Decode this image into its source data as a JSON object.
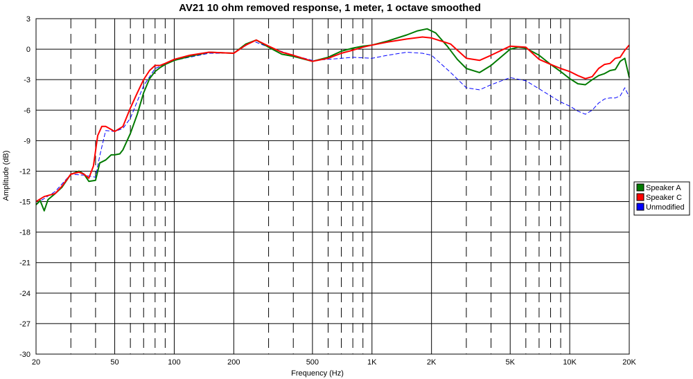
{
  "chart_data": {
    "type": "line",
    "title": "AV21 10 ohm removed response, 1 meter, 1 octave smoothed",
    "xlabel": "Frequency (Hz)",
    "ylabel": "Amplitude (dB)",
    "x_scale": "log",
    "xlim": [
      20,
      20000
    ],
    "ylim": [
      -30,
      3
    ],
    "x_tick_values": [
      20,
      50,
      100,
      200,
      500,
      1000,
      2000,
      5000,
      10000,
      20000
    ],
    "x_tick_labels": [
      "20",
      "50",
      "100",
      "200",
      "500",
      "1K",
      "2K",
      "5K",
      "10K",
      "20K"
    ],
    "y_ticks": [
      3,
      0,
      -3,
      -6,
      -9,
      -12,
      -15,
      -18,
      -21,
      -24,
      -27,
      -30
    ],
    "grid": true,
    "legend_position": "right",
    "series": [
      {
        "name": "Speaker A",
        "color": "#007a00",
        "dashed": false,
        "x": [
          20,
          21,
          22,
          23,
          25,
          27,
          30,
          33,
          35,
          37,
          40,
          42,
          45,
          48,
          50,
          53,
          55,
          60,
          65,
          70,
          75,
          80,
          85,
          90,
          100,
          120,
          150,
          200,
          230,
          260,
          300,
          350,
          400,
          500,
          600,
          700,
          800,
          900,
          1000,
          1200,
          1500,
          1700,
          1900,
          2100,
          2400,
          2700,
          3000,
          3500,
          4000,
          5000,
          5500,
          6000,
          7000,
          8000,
          9000,
          10000,
          11000,
          12000,
          13000,
          14000,
          15000,
          16000,
          17000,
          18000,
          19000,
          20000
        ],
        "values": [
          -15.3,
          -14.9,
          -15.9,
          -14.8,
          -14.2,
          -13.6,
          -12.3,
          -12.0,
          -12.3,
          -13.0,
          -12.9,
          -11.2,
          -10.9,
          -10.4,
          -10.4,
          -10.3,
          -9.9,
          -8.3,
          -6.4,
          -4.3,
          -2.9,
          -2.2,
          -1.8,
          -1.5,
          -1.1,
          -0.7,
          -0.3,
          -0.4,
          0.5,
          0.9,
          0.2,
          -0.5,
          -0.7,
          -1.2,
          -0.8,
          -0.2,
          0.1,
          0.3,
          0.4,
          0.8,
          1.4,
          1.8,
          2.0,
          1.6,
          0.3,
          -1.0,
          -1.9,
          -2.3,
          -1.6,
          0.0,
          0.2,
          0.1,
          -0.6,
          -1.5,
          -2.2,
          -2.9,
          -3.4,
          -3.5,
          -3.0,
          -2.6,
          -2.4,
          -2.1,
          -2.0,
          -1.2,
          -0.9,
          -2.8
        ]
      },
      {
        "name": "Speaker C",
        "color": "#ff0000",
        "dashed": false,
        "x": [
          20,
          22,
          25,
          27,
          30,
          33,
          35,
          37,
          39,
          41,
          43,
          45,
          47,
          50,
          53,
          55,
          58,
          60,
          65,
          70,
          75,
          80,
          85,
          90,
          100,
          120,
          150,
          200,
          230,
          260,
          300,
          350,
          400,
          500,
          600,
          700,
          800,
          900,
          1000,
          1200,
          1500,
          1800,
          2000,
          2500,
          3000,
          3500,
          4000,
          5000,
          6000,
          7000,
          8000,
          9000,
          10000,
          11000,
          12000,
          13000,
          14000,
          15000,
          16000,
          17000,
          18000,
          19000,
          20000
        ],
        "values": [
          -15.0,
          -14.5,
          -14.2,
          -13.5,
          -12.3,
          -12.1,
          -12.3,
          -12.7,
          -11.5,
          -8.5,
          -7.6,
          -7.6,
          -7.8,
          -8.1,
          -7.8,
          -7.6,
          -6.5,
          -5.8,
          -4.3,
          -3.0,
          -2.1,
          -1.6,
          -1.6,
          -1.4,
          -1.0,
          -0.6,
          -0.3,
          -0.4,
          0.4,
          0.9,
          0.3,
          -0.3,
          -0.6,
          -1.2,
          -0.9,
          -0.4,
          -0.1,
          0.2,
          0.4,
          0.7,
          1.0,
          1.2,
          1.1,
          0.5,
          -0.9,
          -1.1,
          -0.6,
          0.3,
          0.2,
          -1.0,
          -1.5,
          -1.9,
          -2.2,
          -2.6,
          -2.9,
          -2.7,
          -1.9,
          -1.5,
          -1.4,
          -0.9,
          -0.8,
          -0.1,
          0.4
        ]
      },
      {
        "name": "Unmodified",
        "color": "#0000ff",
        "dashed": true,
        "x": [
          20,
          22,
          25,
          30,
          35,
          40,
          42,
          45,
          50,
          55,
          60,
          70,
          80,
          90,
          100,
          150,
          200,
          250,
          300,
          400,
          500,
          600,
          700,
          800,
          1000,
          1200,
          1500,
          1800,
          2000,
          2500,
          3000,
          3500,
          4000,
          5000,
          6000,
          7000,
          8000,
          9000,
          10000,
          11000,
          12000,
          13000,
          14000,
          15000,
          16000,
          17000,
          18000,
          19000,
          20000
        ],
        "values": [
          -15.2,
          -14.7,
          -14.0,
          -12.3,
          -12.4,
          -12.6,
          -10.5,
          -8.0,
          -8.1,
          -7.8,
          -6.8,
          -3.6,
          -1.9,
          -1.5,
          -1.1,
          -0.4,
          -0.4,
          0.8,
          0.2,
          -0.6,
          -1.1,
          -1.0,
          -0.9,
          -0.8,
          -0.9,
          -0.6,
          -0.3,
          -0.4,
          -0.6,
          -2.3,
          -3.8,
          -4.0,
          -3.5,
          -2.8,
          -3.1,
          -3.9,
          -4.6,
          -5.2,
          -5.6,
          -6.1,
          -6.4,
          -6.0,
          -5.3,
          -4.9,
          -4.8,
          -4.8,
          -4.6,
          -3.8,
          -4.7
        ]
      }
    ]
  }
}
